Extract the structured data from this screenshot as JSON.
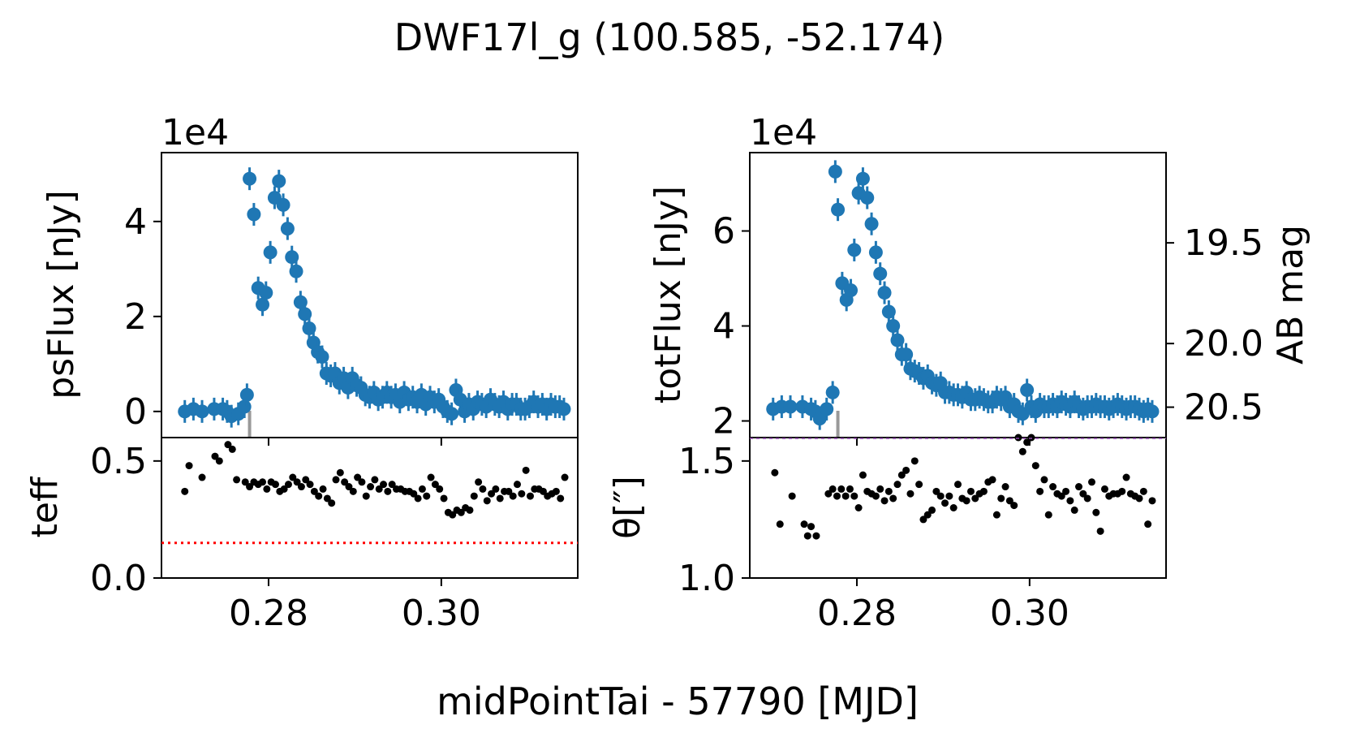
{
  "chart_data": {
    "suptitle": "DWF17l_g (100.585, -52.174)",
    "xlabel": "midPointTai - 57790 [MJD]",
    "xlim": [
      0.2676,
      0.3158
    ],
    "xticks": [
      "0.28",
      "0.30"
    ],
    "panels": [
      {
        "type": "scatter",
        "name": "psFlux",
        "ylabel": "psFlux [nJy]",
        "offset_label": "1e4",
        "ylim": [
          -0.55,
          5.45
        ],
        "yticks": [
          "0",
          "2",
          "4"
        ],
        "marker_color": "#1f77b4",
        "cutoff_x": 0.2778,
        "series": [
          {
            "name": "psFlux",
            "x": [
              0.2703,
              0.2713,
              0.2723,
              0.2737,
              0.2747,
              0.2752,
              0.2757,
              0.2765,
              0.2772,
              0.2775,
              0.2778,
              0.2783,
              0.2788,
              0.2793,
              0.2797,
              0.2802,
              0.2807,
              0.2812,
              0.2817,
              0.2822,
              0.2827,
              0.2832,
              0.2837,
              0.2842,
              0.2847,
              0.2852,
              0.2857,
              0.2862,
              0.2867,
              0.2872,
              0.2877,
              0.2882,
              0.2887,
              0.2892,
              0.2897,
              0.2902,
              0.2907,
              0.2912,
              0.2917,
              0.2922,
              0.2927,
              0.2932,
              0.2937,
              0.2942,
              0.2947,
              0.2952,
              0.2957,
              0.2962,
              0.2967,
              0.2972,
              0.2977,
              0.2982,
              0.2987,
              0.2992,
              0.2997,
              0.3002,
              0.3007,
              0.3012,
              0.3017,
              0.3022,
              0.3027,
              0.3032,
              0.3037,
              0.3042,
              0.3047,
              0.3052,
              0.3057,
              0.3062,
              0.3067,
              0.3072,
              0.3077,
              0.3082,
              0.3087,
              0.3092,
              0.3097,
              0.3102,
              0.3107,
              0.3112,
              0.3117,
              0.3122,
              0.3127,
              0.3132,
              0.3137,
              0.3142
            ],
            "y": [
              0.0,
              0.05,
              0.0,
              0.05,
              0.05,
              0.0,
              -0.1,
              -0.05,
              0.1,
              0.35,
              4.9,
              4.15,
              2.6,
              2.25,
              2.5,
              3.35,
              4.5,
              4.85,
              4.35,
              3.85,
              3.25,
              2.95,
              2.3,
              2.05,
              1.75,
              1.45,
              1.25,
              1.15,
              0.8,
              0.75,
              0.8,
              0.6,
              0.7,
              0.5,
              0.7,
              0.55,
              0.5,
              0.35,
              0.3,
              0.4,
              0.25,
              0.3,
              0.4,
              0.3,
              0.35,
              0.2,
              0.4,
              0.25,
              0.3,
              0.2,
              0.35,
              0.15,
              0.3,
              0.2,
              0.25,
              0.1,
              0.0,
              -0.05,
              0.45,
              0.25,
              0.0,
              0.15,
              0.05,
              0.2,
              0.15,
              0.1,
              0.25,
              0.15,
              0.1,
              0.2,
              0.05,
              0.15,
              0.15,
              0.05,
              0.05,
              0.1,
              0.2,
              0.1,
              0.15,
              0.05,
              0.15,
              0.1,
              0.1,
              0.05
            ]
          }
        ]
      },
      {
        "type": "scatter",
        "name": "teff",
        "ylabel": "teff",
        "ylim": [
          0.0,
          0.6
        ],
        "yticks": [
          "0.0",
          "0.5"
        ],
        "marker_color": "#000000",
        "threshold": {
          "value": 0.15,
          "style": "dotted",
          "color": "#ff0000"
        },
        "series": [
          {
            "name": "teff",
            "x": [
              0.2703,
              0.2708,
              0.2723,
              0.2738,
              0.2743,
              0.2753,
              0.2758,
              0.2763,
              0.2773,
              0.2778,
              0.2783,
              0.2788,
              0.2793,
              0.2798,
              0.2803,
              0.2808,
              0.2813,
              0.2818,
              0.2823,
              0.2828,
              0.2833,
              0.2838,
              0.2843,
              0.2848,
              0.2853,
              0.2858,
              0.2863,
              0.2868,
              0.2873,
              0.2878,
              0.2883,
              0.2888,
              0.2893,
              0.2898,
              0.2903,
              0.2908,
              0.2913,
              0.2918,
              0.2923,
              0.2928,
              0.2933,
              0.2938,
              0.2943,
              0.2948,
              0.2953,
              0.2958,
              0.2963,
              0.2968,
              0.2973,
              0.2978,
              0.2983,
              0.2988,
              0.2993,
              0.2998,
              0.3003,
              0.3008,
              0.3013,
              0.3018,
              0.3023,
              0.3028,
              0.3033,
              0.3038,
              0.3043,
              0.3048,
              0.3053,
              0.3058,
              0.3063,
              0.3068,
              0.3073,
              0.3078,
              0.3083,
              0.3088,
              0.3093,
              0.3098,
              0.3103,
              0.3108,
              0.3113,
              0.3118,
              0.3123,
              0.3128,
              0.3133,
              0.3138,
              0.3143
            ],
            "y": [
              0.37,
              0.48,
              0.43,
              0.52,
              0.5,
              0.57,
              0.55,
              0.42,
              0.41,
              0.39,
              0.41,
              0.4,
              0.41,
              0.38,
              0.41,
              0.4,
              0.37,
              0.38,
              0.4,
              0.43,
              0.41,
              0.39,
              0.42,
              0.4,
              0.37,
              0.35,
              0.38,
              0.34,
              0.32,
              0.42,
              0.45,
              0.41,
              0.39,
              0.37,
              0.43,
              0.41,
              0.35,
              0.39,
              0.42,
              0.38,
              0.4,
              0.37,
              0.4,
              0.38,
              0.38,
              0.37,
              0.37,
              0.36,
              0.34,
              0.38,
              0.35,
              0.43,
              0.4,
              0.38,
              0.34,
              0.28,
              0.27,
              0.29,
              0.28,
              0.3,
              0.29,
              0.35,
              0.41,
              0.38,
              0.33,
              0.36,
              0.38,
              0.34,
              0.37,
              0.37,
              0.35,
              0.4,
              0.36,
              0.46,
              0.35,
              0.38,
              0.38,
              0.37,
              0.35,
              0.36,
              0.37,
              0.34,
              0.43
            ]
          }
        ]
      },
      {
        "type": "scatter",
        "name": "totFlux",
        "ylabel": "totFlux [nJy]",
        "offset_label": "1e4",
        "ylim": [
          1.65,
          7.65
        ],
        "yticks": [
          "2",
          "4",
          "6"
        ],
        "marker_color": "#1f77b4",
        "cutoff_x": 0.2778,
        "right_axis": {
          "label": "AB mag",
          "ticks": [
            {
              "value": 19.5,
              "label": "19.5",
              "flux": 5.75
            },
            {
              "value": 20.0,
              "label": "20.0",
              "flux": 3.63
            },
            {
              "value": 20.5,
              "label": "20.5",
              "flux": 2.29
            }
          ]
        },
        "series": [
          {
            "name": "totFlux",
            "x": [
              0.2703,
              0.2713,
              0.2723,
              0.2737,
              0.2747,
              0.2752,
              0.2757,
              0.2765,
              0.2772,
              0.2775,
              0.2778,
              0.2783,
              0.2788,
              0.2793,
              0.2797,
              0.2802,
              0.2807,
              0.2812,
              0.2817,
              0.2822,
              0.2827,
              0.2832,
              0.2837,
              0.2842,
              0.2847,
              0.2852,
              0.2857,
              0.2862,
              0.2867,
              0.2872,
              0.2877,
              0.2882,
              0.2887,
              0.2892,
              0.2897,
              0.2902,
              0.2907,
              0.2912,
              0.2917,
              0.2922,
              0.2927,
              0.2932,
              0.2937,
              0.2942,
              0.2947,
              0.2952,
              0.2957,
              0.2962,
              0.2967,
              0.2972,
              0.2977,
              0.2982,
              0.2987,
              0.2992,
              0.2997,
              0.3002,
              0.3007,
              0.3012,
              0.3017,
              0.3022,
              0.3027,
              0.3032,
              0.3037,
              0.3042,
              0.3047,
              0.3052,
              0.3057,
              0.3062,
              0.3067,
              0.3072,
              0.3077,
              0.3082,
              0.3087,
              0.3092,
              0.3097,
              0.3102,
              0.3107,
              0.3112,
              0.3117,
              0.3122,
              0.3127,
              0.3132,
              0.3137,
              0.3142
            ],
            "y": [
              2.25,
              2.3,
              2.3,
              2.3,
              2.25,
              2.2,
              2.05,
              2.25,
              2.6,
              7.25,
              6.45,
              4.9,
              4.55,
              4.75,
              5.6,
              6.8,
              7.1,
              6.7,
              6.15,
              5.55,
              5.1,
              4.7,
              4.3,
              4.0,
              3.7,
              3.4,
              3.4,
              3.1,
              3.05,
              3.0,
              2.9,
              2.95,
              2.8,
              2.75,
              2.8,
              2.6,
              2.6,
              2.55,
              2.55,
              2.5,
              2.6,
              2.45,
              2.45,
              2.5,
              2.45,
              2.4,
              2.4,
              2.5,
              2.45,
              2.5,
              2.3,
              2.35,
              2.2,
              2.15,
              2.65,
              2.3,
              2.2,
              2.35,
              2.3,
              2.3,
              2.35,
              2.3,
              2.4,
              2.35,
              2.3,
              2.4,
              2.3,
              2.25,
              2.3,
              2.3,
              2.35,
              2.3,
              2.3,
              2.25,
              2.3,
              2.35,
              2.3,
              2.25,
              2.3,
              2.3,
              2.25,
              2.2,
              2.25,
              2.2
            ]
          }
        ]
      },
      {
        "type": "scatter",
        "name": "theta",
        "ylabel": "θ[″]",
        "ylim": [
          1.0,
          1.6
        ],
        "yticks": [
          "1.0",
          "1.5"
        ],
        "marker_color": "#000000",
        "series": [
          {
            "name": "seeing",
            "x": [
              0.2705,
              0.2711,
              0.2725,
              0.2739,
              0.2743,
              0.2747,
              0.2753,
              0.2767,
              0.2772,
              0.2777,
              0.2782,
              0.2787,
              0.2792,
              0.2797,
              0.2802,
              0.2807,
              0.2812,
              0.2817,
              0.2822,
              0.2827,
              0.2832,
              0.2837,
              0.2842,
              0.2847,
              0.2852,
              0.2857,
              0.2862,
              0.2867,
              0.2872,
              0.2877,
              0.2882,
              0.2887,
              0.2892,
              0.2897,
              0.2902,
              0.2907,
              0.2912,
              0.2917,
              0.2922,
              0.2927,
              0.2932,
              0.2937,
              0.2942,
              0.2947,
              0.2952,
              0.2957,
              0.2962,
              0.2967,
              0.2972,
              0.2977,
              0.2982,
              0.2987,
              0.2992,
              0.2997,
              0.3002,
              0.3007,
              0.3012,
              0.3017,
              0.3022,
              0.3027,
              0.3032,
              0.3037,
              0.3042,
              0.3047,
              0.3052,
              0.3057,
              0.3062,
              0.3067,
              0.3072,
              0.3077,
              0.3082,
              0.3087,
              0.3092,
              0.3097,
              0.3102,
              0.3107,
              0.3112,
              0.3117,
              0.3122,
              0.3127,
              0.3132,
              0.3137,
              0.3142
            ],
            "y": [
              1.45,
              1.23,
              1.35,
              1.23,
              1.18,
              1.22,
              1.18,
              1.36,
              1.38,
              1.35,
              1.38,
              1.35,
              1.38,
              1.35,
              1.3,
              1.44,
              1.37,
              1.36,
              1.35,
              1.38,
              1.33,
              1.37,
              1.34,
              1.4,
              1.44,
              1.46,
              1.36,
              1.5,
              1.4,
              1.25,
              1.27,
              1.29,
              1.37,
              1.35,
              1.32,
              1.35,
              1.3,
              1.4,
              1.34,
              1.33,
              1.37,
              1.34,
              1.36,
              1.37,
              1.41,
              1.42,
              1.27,
              1.34,
              1.39,
              1.33,
              1.31,
              1.6,
              1.54,
              1.58,
              1.6,
              1.48,
              1.37,
              1.42,
              1.27,
              1.39,
              1.36,
              1.35,
              1.37,
              1.33,
              1.29,
              1.39,
              1.36,
              1.34,
              1.41,
              1.28,
              1.2,
              1.38,
              1.35,
              1.36,
              1.36,
              1.37,
              1.43,
              1.36,
              1.35,
              1.34,
              1.37,
              1.23,
              1.33
            ]
          }
        ]
      }
    ]
  }
}
